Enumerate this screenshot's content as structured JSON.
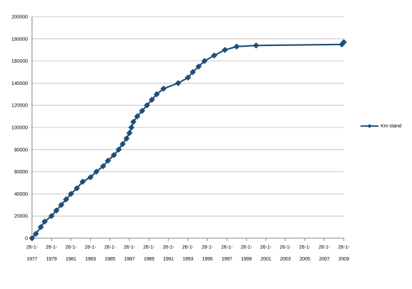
{
  "chart_data": {
    "type": "line",
    "title": "",
    "xlabel": "",
    "ylabel": "",
    "ylim": [
      0,
      200000
    ],
    "yticks": [
      "0",
      "20000",
      "40000",
      "60000",
      "80000",
      "100000",
      "120000",
      "140000",
      "160000",
      "180000",
      "200000"
    ],
    "xticks": [
      {
        "top": "26-1-",
        "bottom": "1977"
      },
      {
        "top": "26-1-",
        "bottom": "1979"
      },
      {
        "top": "26-1-",
        "bottom": "1981"
      },
      {
        "top": "26-1-",
        "bottom": "1983"
      },
      {
        "top": "26-1-",
        "bottom": "1985"
      },
      {
        "top": "26-1-",
        "bottom": "1987"
      },
      {
        "top": "26-1-",
        "bottom": "1989"
      },
      {
        "top": "26-1-",
        "bottom": "1991"
      },
      {
        "top": "26-1-",
        "bottom": "1993"
      },
      {
        "top": "26-1-",
        "bottom": "1995"
      },
      {
        "top": "26-1-",
        "bottom": "1997"
      },
      {
        "top": "26-1-",
        "bottom": "1999"
      },
      {
        "top": "26-1-",
        "bottom": "2001"
      },
      {
        "top": "26-1-",
        "bottom": "2003"
      },
      {
        "top": "26-1-",
        "bottom": "2005"
      },
      {
        "top": "26-1-",
        "bottom": "2007"
      },
      {
        "top": "26-1-",
        "bottom": "2009"
      }
    ],
    "xlim": [
      1977,
      2009
    ],
    "grid": "horizontal",
    "legend_position": "right",
    "series": [
      {
        "name": "Km-stand",
        "color": "#1f4e79",
        "points": [
          [
            1977.0,
            0
          ],
          [
            1977.4,
            4000
          ],
          [
            1977.9,
            10000
          ],
          [
            1978.3,
            15000
          ],
          [
            1979.0,
            20000
          ],
          [
            1979.5,
            25000
          ],
          [
            1980.0,
            30000
          ],
          [
            1980.5,
            35000
          ],
          [
            1981.0,
            40000
          ],
          [
            1981.6,
            45000
          ],
          [
            1982.2,
            51000
          ],
          [
            1983.0,
            55000
          ],
          [
            1983.6,
            60000
          ],
          [
            1984.3,
            65000
          ],
          [
            1984.8,
            70000
          ],
          [
            1985.4,
            75000
          ],
          [
            1985.9,
            80000
          ],
          [
            1986.3,
            85000
          ],
          [
            1986.7,
            90000
          ],
          [
            1987.0,
            95000
          ],
          [
            1987.2,
            100000
          ],
          [
            1987.4,
            105000
          ],
          [
            1987.8,
            110000
          ],
          [
            1988.3,
            115000
          ],
          [
            1988.8,
            120000
          ],
          [
            1989.3,
            125000
          ],
          [
            1989.8,
            130000
          ],
          [
            1990.5,
            135000
          ],
          [
            1992.0,
            140000
          ],
          [
            1993.0,
            145000
          ],
          [
            1993.5,
            150000
          ],
          [
            1994.1,
            155000
          ],
          [
            1994.7,
            160000
          ],
          [
            1995.7,
            165000
          ],
          [
            1996.8,
            170000
          ],
          [
            1998.0,
            173000
          ],
          [
            2000.0,
            174000
          ],
          [
            2008.8,
            175000
          ],
          [
            2009.0,
            177000
          ]
        ]
      }
    ]
  }
}
